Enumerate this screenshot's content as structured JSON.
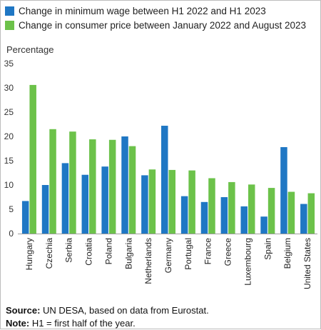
{
  "chart_data": {
    "type": "bar",
    "title": "",
    "xlabel": "",
    "ylabel": "Percentage",
    "ylim": [
      0,
      35
    ],
    "yticks": [
      0,
      5,
      10,
      15,
      20,
      25,
      30,
      35
    ],
    "grid": false,
    "legend_position": "top-left",
    "categories": [
      "Hungary",
      "Czechia",
      "Serbia",
      "Croatia",
      "Poland",
      "Bulgaria",
      "Netherlands",
      "Germany",
      "Portugal",
      "France",
      "Greece",
      "Luxembourg",
      "Spain",
      "Belgium",
      "United States"
    ],
    "series": [
      {
        "name": "Change in minimum wage between H1 2022 and H1 2023",
        "color": "#1f77c4",
        "values": [
          6.7,
          10.0,
          14.5,
          12.1,
          13.8,
          20.0,
          12.0,
          22.2,
          7.7,
          6.5,
          7.5,
          5.6,
          3.5,
          17.8,
          6.1
        ]
      },
      {
        "name": "Change in consumer price between January 2022 and August 2023",
        "color": "#6cc24a",
        "values": [
          30.6,
          21.5,
          21.0,
          19.4,
          19.3,
          18.0,
          13.2,
          13.1,
          13.0,
          11.4,
          10.6,
          10.1,
          9.4,
          8.6,
          8.3
        ]
      }
    ]
  },
  "footer": {
    "source_label": "Source:",
    "source_text": " UN DESA, based on data from Eurostat.",
    "note_label": "Note:",
    "note_text": " H1 = first half of the year."
  }
}
